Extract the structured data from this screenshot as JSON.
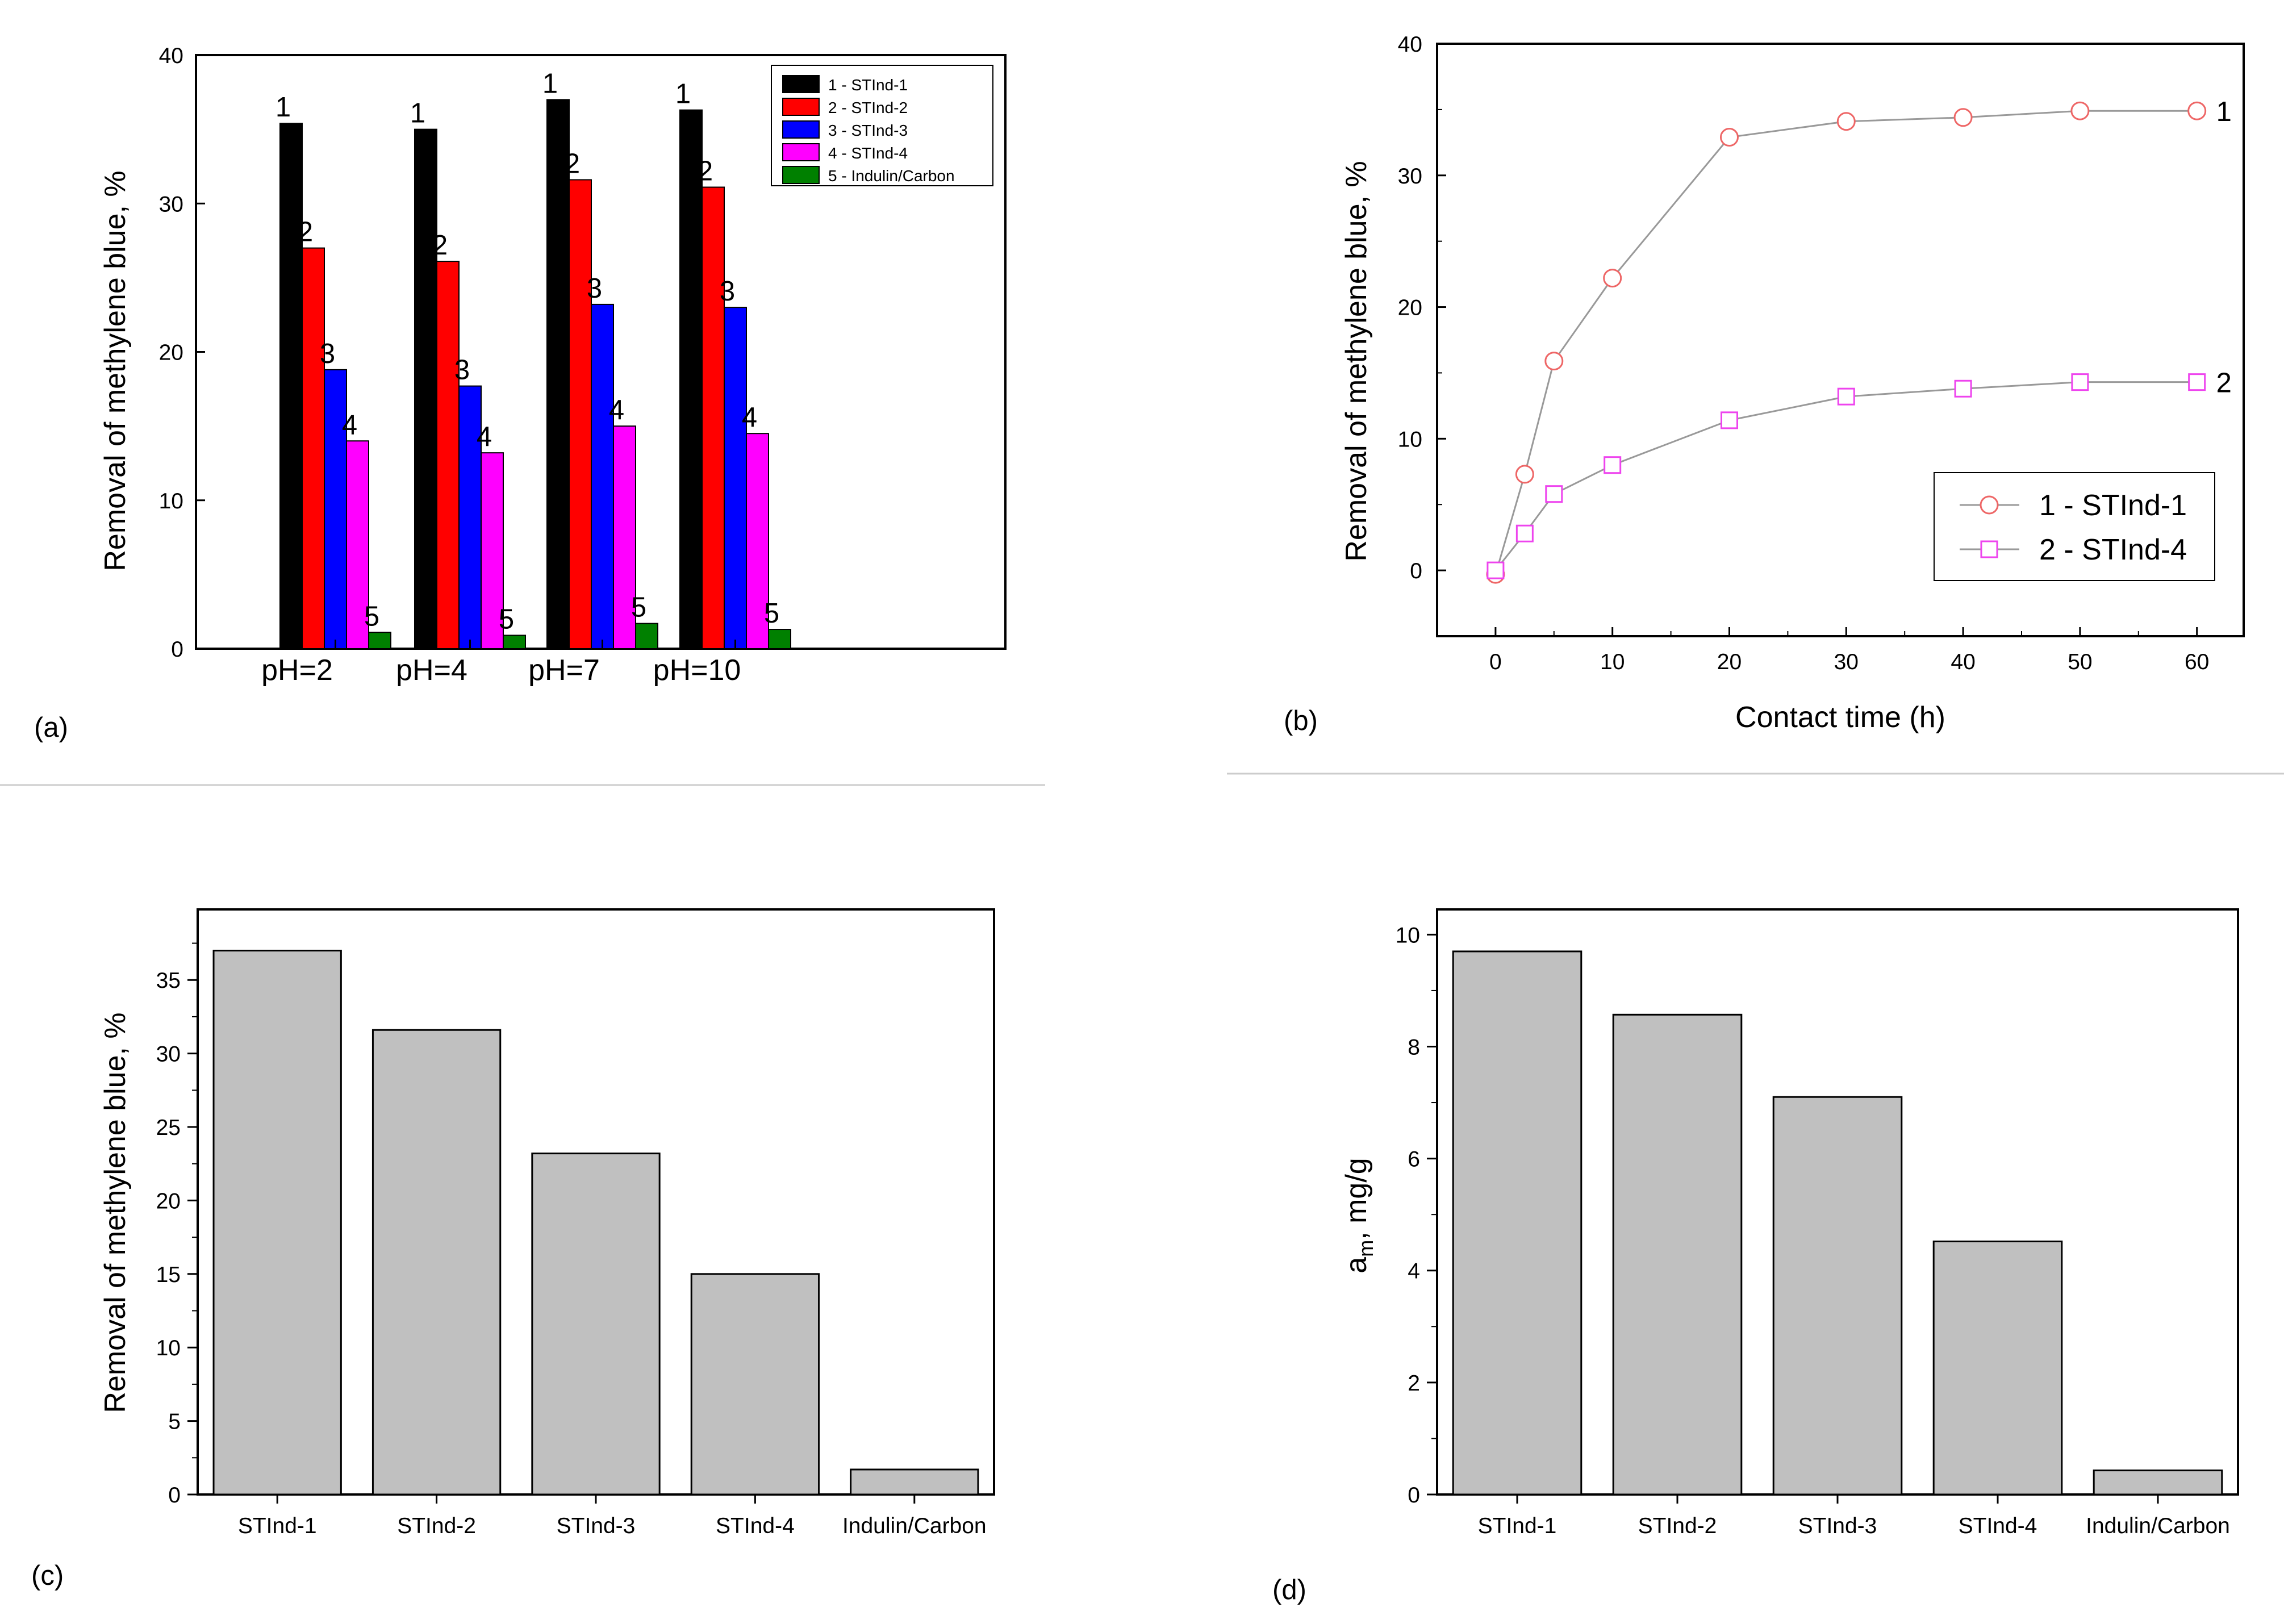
{
  "chart_data": [
    {
      "panel": "(a)",
      "type": "bar",
      "categories": [
        "pH=2",
        "pH=4",
        "pH=7",
        "pH=10"
      ],
      "ylabel": "Removal of methylene blue, %",
      "xlabel": "",
      "ylim": [
        0,
        40
      ],
      "yticks": [
        "0",
        "10",
        "20",
        "30",
        "40"
      ],
      "legend_position": "top-right",
      "series": [
        {
          "name": "1 - STInd-1",
          "label": "1",
          "color": "#000000",
          "values": [
            35.4,
            35.0,
            37.0,
            36.3
          ]
        },
        {
          "name": "2 - STInd-2",
          "label": "2",
          "color": "#ff0000",
          "values": [
            27.0,
            26.1,
            31.6,
            31.1
          ]
        },
        {
          "name": "3 - STInd-3",
          "label": "3",
          "color": "#0000ff",
          "values": [
            18.8,
            17.7,
            23.2,
            23.0
          ]
        },
        {
          "name": "4 - STInd-4",
          "label": "4",
          "color": "#ff00ff",
          "values": [
            14.0,
            13.2,
            15.0,
            14.5
          ]
        },
        {
          "name": "5 - Indulin/Carbon",
          "label": "5",
          "color": "#008000",
          "values": [
            1.1,
            0.9,
            1.7,
            1.3
          ]
        }
      ]
    },
    {
      "panel": "(b)",
      "type": "line",
      "xlabel": "Contact time (h)",
      "ylabel": "Removal of methylene blue, %",
      "xlim": [
        -5,
        64
      ],
      "ylim": [
        -5,
        40
      ],
      "xticks": [
        "0",
        "10",
        "20",
        "30",
        "40",
        "50",
        "60"
      ],
      "yticks": [
        "0",
        "10",
        "20",
        "30",
        "40"
      ],
      "legend_position": "bottom-right",
      "series": [
        {
          "name": "1 - STInd-1",
          "label": "1",
          "marker": "circle",
          "color": "#ee6666",
          "x": [
            0,
            2.5,
            5,
            10,
            20,
            30,
            40,
            50,
            60
          ],
          "y": [
            -0.3,
            7.3,
            15.9,
            22.2,
            32.9,
            34.1,
            34.4,
            34.9,
            34.9
          ]
        },
        {
          "name": "2 - STInd-4",
          "label": "2",
          "marker": "square",
          "color": "#ee44ee",
          "x": [
            0,
            2.5,
            5,
            10,
            20,
            30,
            40,
            50,
            60
          ],
          "y": [
            0,
            2.8,
            5.8,
            8.0,
            11.4,
            13.2,
            13.8,
            14.3,
            14.3
          ]
        }
      ]
    },
    {
      "panel": "(c)",
      "type": "bar",
      "categories": [
        "STInd-1",
        "STInd-2",
        "STInd-3",
        "STInd-4",
        "Indulin/Carbon"
      ],
      "values": [
        37.0,
        31.6,
        23.2,
        15.0,
        1.7
      ],
      "ylabel": "Removal of methylene blue, %",
      "xlabel": "",
      "ylim": [
        0,
        39.8
      ],
      "yticks": [
        "0",
        "5",
        "10",
        "15",
        "20",
        "25",
        "30",
        "35"
      ],
      "color": "#c0c0c0"
    },
    {
      "panel": "(d)",
      "type": "bar",
      "categories": [
        "STInd-1",
        "STInd-2",
        "STInd-3",
        "STInd-4",
        "Indulin/Carbon"
      ],
      "values": [
        9.7,
        8.57,
        7.1,
        4.52,
        0.43
      ],
      "ylabel": "a",
      "ylabel_sub": "m",
      "ylabel_rest": ", mg/g",
      "xlabel": "",
      "ylim": [
        0,
        10.45
      ],
      "yticks": [
        "0",
        "2",
        "4",
        "6",
        "8",
        "10"
      ],
      "color": "#c0c0c0"
    }
  ]
}
